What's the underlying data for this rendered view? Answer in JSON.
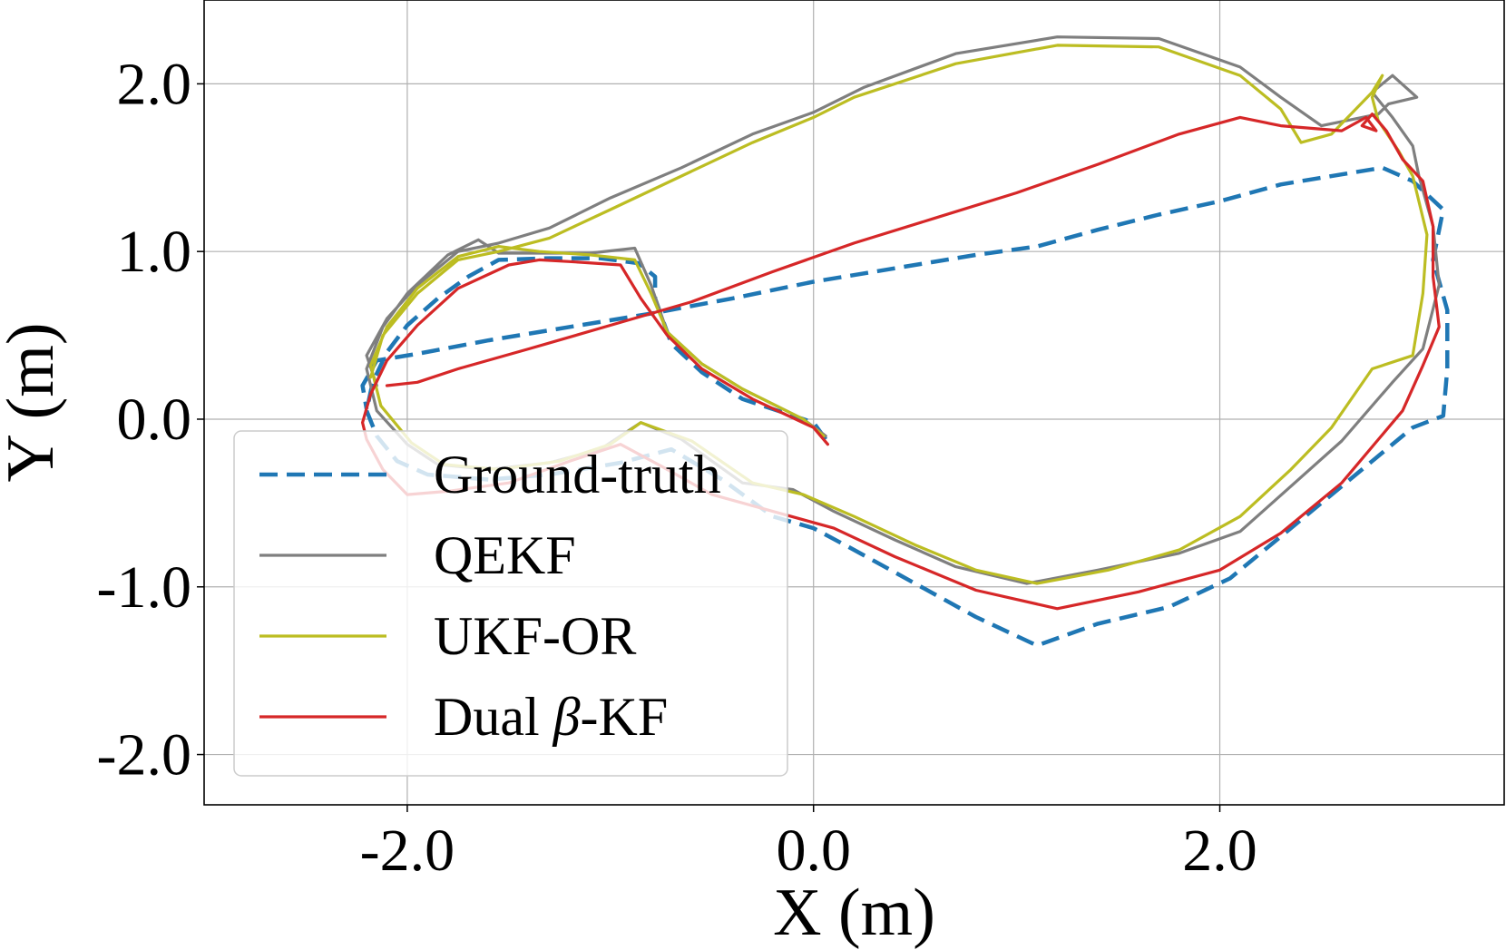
{
  "chart_data": {
    "type": "line",
    "xlabel": "X (m)",
    "ylabel": "Y (m)",
    "xlim": [
      -3.0,
      3.4
    ],
    "ylim": [
      -2.3,
      2.5
    ],
    "xticks": [
      -2.0,
      0.0,
      2.0
    ],
    "xtick_labels": [
      "-2.0",
      "0.0",
      "2.0"
    ],
    "yticks": [
      -2.0,
      -1.0,
      0.0,
      1.0,
      2.0
    ],
    "ytick_labels": [
      "-2.0",
      "-1.0",
      "0.0",
      "1.0",
      "2.0"
    ],
    "grid": true,
    "legend_position": "lower-left",
    "series": [
      {
        "name": "Ground-truth",
        "name_plain": "Ground-truth",
        "color": "#1f77b4",
        "style": "dashed",
        "points": [
          [
            0.06,
            -0.12
          ],
          [
            0.0,
            -0.02
          ],
          [
            -0.35,
            0.12
          ],
          [
            -0.55,
            0.28
          ],
          [
            -0.7,
            0.45
          ],
          [
            -0.78,
            0.72
          ],
          [
            -0.78,
            0.85
          ],
          [
            -0.86,
            0.93
          ],
          [
            -1.05,
            0.96
          ],
          [
            -1.3,
            0.96
          ],
          [
            -1.55,
            0.95
          ],
          [
            -1.7,
            0.85
          ],
          [
            -1.85,
            0.72
          ],
          [
            -2.0,
            0.56
          ],
          [
            -2.1,
            0.4
          ],
          [
            -2.17,
            0.22
          ],
          [
            -2.2,
            0.05
          ],
          [
            -2.15,
            -0.1
          ],
          [
            -2.05,
            -0.25
          ],
          [
            -1.9,
            -0.33
          ],
          [
            -1.6,
            -0.36
          ],
          [
            -1.3,
            -0.33
          ],
          [
            -0.95,
            -0.26
          ],
          [
            -0.7,
            -0.18
          ],
          [
            -0.45,
            -0.36
          ],
          [
            -0.2,
            -0.58
          ],
          [
            0.0,
            -0.65
          ],
          [
            0.2,
            -0.78
          ],
          [
            0.5,
            -0.98
          ],
          [
            0.8,
            -1.18
          ],
          [
            1.1,
            -1.35
          ],
          [
            1.4,
            -1.22
          ],
          [
            1.75,
            -1.12
          ],
          [
            2.05,
            -0.95
          ],
          [
            2.4,
            -0.6
          ],
          [
            2.75,
            -0.25
          ],
          [
            2.95,
            -0.05
          ],
          [
            3.1,
            0.02
          ],
          [
            3.12,
            0.3
          ],
          [
            3.12,
            0.65
          ],
          [
            3.05,
            0.95
          ],
          [
            3.1,
            1.25
          ],
          [
            2.95,
            1.42
          ],
          [
            2.8,
            1.5
          ],
          [
            2.6,
            1.46
          ],
          [
            2.3,
            1.4
          ],
          [
            2.0,
            1.3
          ],
          [
            1.7,
            1.22
          ],
          [
            1.4,
            1.13
          ],
          [
            1.1,
            1.03
          ],
          [
            0.8,
            0.98
          ],
          [
            0.4,
            0.9
          ],
          [
            0.0,
            0.82
          ],
          [
            -0.4,
            0.72
          ],
          [
            -0.8,
            0.63
          ],
          [
            -1.2,
            0.55
          ],
          [
            -1.6,
            0.47
          ],
          [
            -1.95,
            0.39
          ],
          [
            -2.15,
            0.35
          ],
          [
            -2.22,
            0.2
          ],
          [
            -2.2,
            0.06
          ]
        ]
      },
      {
        "name": "QEKF",
        "name_plain": "QEKF",
        "color": "#7f7f7f",
        "style": "solid",
        "points": [
          [
            0.06,
            -0.1
          ],
          [
            -0.05,
            0.0
          ],
          [
            -0.35,
            0.18
          ],
          [
            -0.55,
            0.33
          ],
          [
            -0.72,
            0.52
          ],
          [
            -0.8,
            0.8
          ],
          [
            -0.88,
            1.02
          ],
          [
            -1.1,
            0.99
          ],
          [
            -1.35,
            0.99
          ],
          [
            -1.55,
            0.99
          ],
          [
            -1.65,
            1.07
          ],
          [
            -1.8,
            0.98
          ],
          [
            -2.0,
            0.75
          ],
          [
            -2.12,
            0.55
          ],
          [
            -2.2,
            0.3
          ],
          [
            -2.15,
            0.05
          ],
          [
            -2.0,
            -0.15
          ],
          [
            -1.85,
            -0.27
          ],
          [
            -1.6,
            -0.3
          ],
          [
            -1.3,
            -0.26
          ],
          [
            -1.05,
            -0.18
          ],
          [
            -0.85,
            -0.02
          ],
          [
            -0.65,
            -0.12
          ],
          [
            -0.35,
            -0.38
          ],
          [
            -0.1,
            -0.42
          ],
          [
            0.1,
            -0.55
          ],
          [
            0.4,
            -0.72
          ],
          [
            0.7,
            -0.88
          ],
          [
            1.05,
            -0.98
          ],
          [
            1.4,
            -0.9
          ],
          [
            1.8,
            -0.8
          ],
          [
            2.1,
            -0.67
          ],
          [
            2.35,
            -0.4
          ],
          [
            2.6,
            -0.13
          ],
          [
            2.85,
            0.22
          ],
          [
            3.0,
            0.42
          ],
          [
            3.08,
            0.8
          ],
          [
            3.05,
            1.15
          ],
          [
            2.98,
            1.45
          ],
          [
            2.95,
            1.63
          ],
          [
            2.85,
            1.8
          ],
          [
            2.75,
            1.95
          ],
          [
            2.85,
            2.05
          ],
          [
            2.97,
            1.92
          ],
          [
            2.83,
            1.88
          ],
          [
            2.78,
            1.82
          ],
          [
            2.7,
            1.8
          ],
          [
            2.5,
            1.75
          ],
          [
            2.3,
            1.92
          ],
          [
            2.1,
            2.1
          ],
          [
            1.7,
            2.27
          ],
          [
            1.2,
            2.28
          ],
          [
            0.7,
            2.18
          ],
          [
            0.25,
            1.98
          ],
          [
            0.0,
            1.83
          ],
          [
            -0.3,
            1.7
          ],
          [
            -0.65,
            1.5
          ],
          [
            -1.0,
            1.32
          ],
          [
            -1.3,
            1.14
          ],
          [
            -1.55,
            1.05
          ],
          [
            -1.75,
            1.0
          ],
          [
            -1.95,
            0.8
          ],
          [
            -2.1,
            0.6
          ],
          [
            -2.2,
            0.38
          ],
          [
            -2.15,
            0.2
          ]
        ]
      },
      {
        "name": "UKF-OR",
        "name_plain": "UKF-OR",
        "color": "#bcbd22",
        "style": "solid",
        "points": [
          [
            0.05,
            -0.1
          ],
          [
            -0.05,
            0.0
          ],
          [
            -0.35,
            0.18
          ],
          [
            -0.55,
            0.33
          ],
          [
            -0.72,
            0.52
          ],
          [
            -0.8,
            0.75
          ],
          [
            -0.88,
            0.95
          ],
          [
            -1.1,
            0.98
          ],
          [
            -1.35,
            1.0
          ],
          [
            -1.55,
            1.03
          ],
          [
            -1.75,
            0.97
          ],
          [
            -1.95,
            0.78
          ],
          [
            -2.1,
            0.55
          ],
          [
            -2.18,
            0.32
          ],
          [
            -2.13,
            0.08
          ],
          [
            -1.98,
            -0.14
          ],
          [
            -1.82,
            -0.27
          ],
          [
            -1.55,
            -0.3
          ],
          [
            -1.25,
            -0.25
          ],
          [
            -1.0,
            -0.15
          ],
          [
            -0.85,
            -0.02
          ],
          [
            -0.6,
            -0.13
          ],
          [
            -0.3,
            -0.38
          ],
          [
            -0.05,
            -0.45
          ],
          [
            0.2,
            -0.58
          ],
          [
            0.5,
            -0.75
          ],
          [
            0.8,
            -0.9
          ],
          [
            1.1,
            -0.98
          ],
          [
            1.45,
            -0.9
          ],
          [
            1.8,
            -0.78
          ],
          [
            2.1,
            -0.58
          ],
          [
            2.35,
            -0.3
          ],
          [
            2.55,
            -0.05
          ],
          [
            2.75,
            0.3
          ],
          [
            2.95,
            0.38
          ],
          [
            3.0,
            0.75
          ],
          [
            3.02,
            1.1
          ],
          [
            2.95,
            1.45
          ],
          [
            2.88,
            1.6
          ],
          [
            2.78,
            1.78
          ],
          [
            2.75,
            1.92
          ],
          [
            2.8,
            2.05
          ],
          [
            2.75,
            1.95
          ],
          [
            2.55,
            1.7
          ],
          [
            2.4,
            1.65
          ],
          [
            2.3,
            1.85
          ],
          [
            2.1,
            2.05
          ],
          [
            1.7,
            2.22
          ],
          [
            1.2,
            2.23
          ],
          [
            0.7,
            2.12
          ],
          [
            0.2,
            1.92
          ],
          [
            0.0,
            1.8
          ],
          [
            -0.3,
            1.65
          ],
          [
            -0.65,
            1.45
          ],
          [
            -1.0,
            1.25
          ],
          [
            -1.3,
            1.08
          ],
          [
            -1.55,
            1.0
          ],
          [
            -1.75,
            0.95
          ],
          [
            -1.95,
            0.75
          ],
          [
            -2.12,
            0.5
          ],
          [
            -2.18,
            0.25
          ]
        ]
      },
      {
        "name": "Dual β-KF",
        "name_plain": "Dual ",
        "name_italic": "β",
        "name_suffix": "-KF",
        "color": "#d62728",
        "style": "solid",
        "points": [
          [
            0.07,
            -0.15
          ],
          [
            0.0,
            -0.05
          ],
          [
            -0.3,
            0.12
          ],
          [
            -0.55,
            0.3
          ],
          [
            -0.72,
            0.5
          ],
          [
            -0.85,
            0.72
          ],
          [
            -0.95,
            0.92
          ],
          [
            -1.2,
            0.94
          ],
          [
            -1.35,
            0.95
          ],
          [
            -1.5,
            0.92
          ],
          [
            -1.75,
            0.78
          ],
          [
            -1.95,
            0.56
          ],
          [
            -2.1,
            0.35
          ],
          [
            -2.18,
            0.15
          ],
          [
            -2.22,
            -0.02
          ],
          [
            -2.2,
            -0.12
          ],
          [
            -2.12,
            -0.3
          ],
          [
            -2.0,
            -0.45
          ],
          [
            -1.8,
            -0.43
          ],
          [
            -1.5,
            -0.38
          ],
          [
            -1.2,
            -0.25
          ],
          [
            -0.95,
            -0.15
          ],
          [
            -0.75,
            -0.28
          ],
          [
            -0.5,
            -0.45
          ],
          [
            -0.2,
            -0.55
          ],
          [
            0.1,
            -0.65
          ],
          [
            0.4,
            -0.82
          ],
          [
            0.8,
            -1.02
          ],
          [
            1.2,
            -1.13
          ],
          [
            1.6,
            -1.03
          ],
          [
            2.0,
            -0.9
          ],
          [
            2.3,
            -0.68
          ],
          [
            2.6,
            -0.38
          ],
          [
            2.9,
            0.05
          ],
          [
            3.0,
            0.32
          ],
          [
            3.08,
            0.55
          ],
          [
            3.05,
            0.85
          ],
          [
            3.05,
            1.15
          ],
          [
            3.0,
            1.42
          ],
          [
            2.9,
            1.55
          ],
          [
            2.82,
            1.72
          ],
          [
            2.75,
            1.82
          ],
          [
            2.7,
            1.75
          ],
          [
            2.77,
            1.72
          ],
          [
            2.72,
            1.8
          ],
          [
            2.6,
            1.72
          ],
          [
            2.3,
            1.75
          ],
          [
            2.1,
            1.8
          ],
          [
            1.8,
            1.7
          ],
          [
            1.4,
            1.52
          ],
          [
            1.0,
            1.35
          ],
          [
            0.6,
            1.2
          ],
          [
            0.2,
            1.05
          ],
          [
            -0.2,
            0.88
          ],
          [
            -0.6,
            0.7
          ],
          [
            -1.0,
            0.56
          ],
          [
            -1.4,
            0.42
          ],
          [
            -1.75,
            0.3
          ],
          [
            -1.95,
            0.22
          ],
          [
            -2.1,
            0.2
          ]
        ]
      }
    ]
  }
}
